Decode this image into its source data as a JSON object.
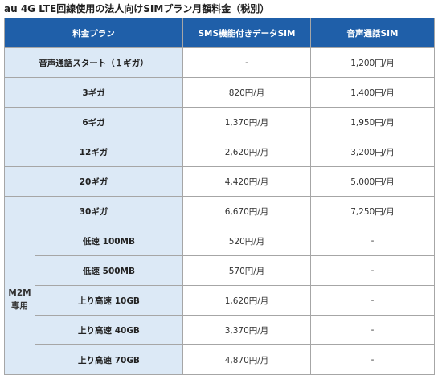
{
  "title": "au 4G LTE回線使用の法人向けSIMプラン月額料金（税別）",
  "table": {
    "header": [
      "料金プラン",
      "SMS機能付きデータSIM",
      "音声通話SIM"
    ],
    "rows": [
      [
        "音声通話スタート（１ギガ）",
        "-",
        "1,200円/月"
      ],
      [
        "3ギガ",
        "820円/月",
        "1,400円/月"
      ],
      [
        "6ギガ",
        "1,370円/月",
        "1,950円/月"
      ],
      [
        "12ギガ",
        "2,620円/月",
        "3,200円/月"
      ],
      [
        "20ギガ",
        "4,420円/月",
        "5,000円/月"
      ],
      [
        "30ギガ",
        "6,670円/月",
        "7,250円/月"
      ]
    ],
    "group": {
      "label": [
        "M2M",
        "専用"
      ],
      "rows": [
        [
          "低速 100MB",
          "520円/月",
          "-"
        ],
        [
          "低速 500MB",
          "570円/月",
          "-"
        ],
        [
          "上り高速 10GB",
          "1,620円/月",
          "-"
        ],
        [
          "上り高速 40GB",
          "3,370円/月",
          "-"
        ],
        [
          "上り高速 70GB",
          "4,870円/月",
          "-"
        ]
      ]
    }
  }
}
